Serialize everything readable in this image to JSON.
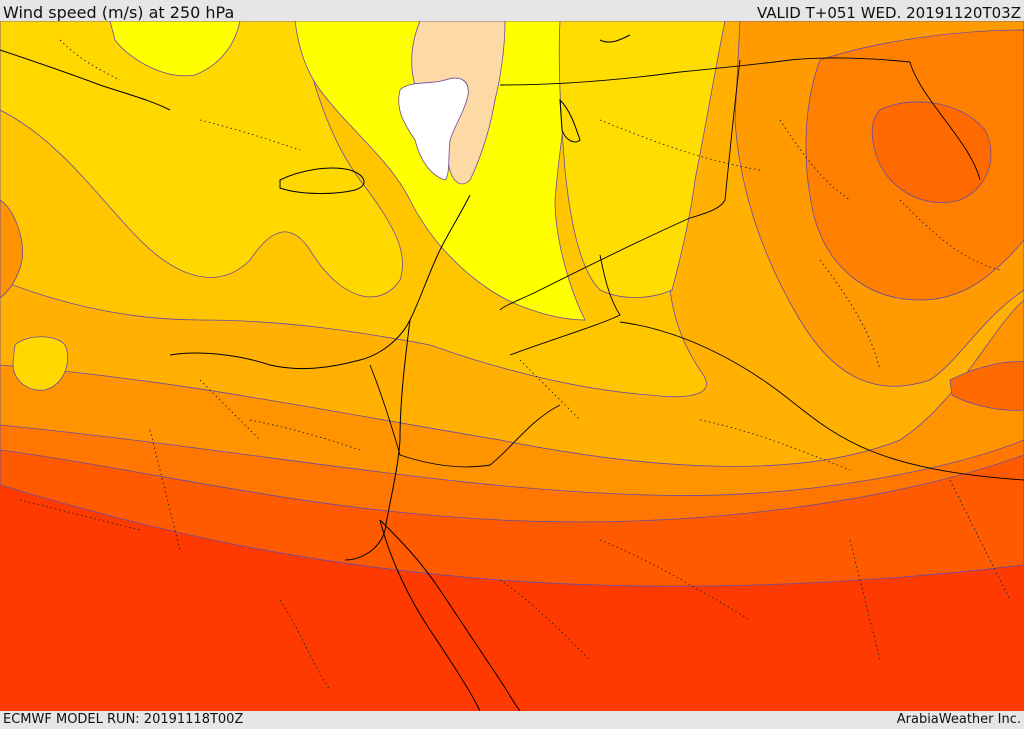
{
  "header": {
    "title": "Wind speed (m/s) at 250 hPa",
    "valid_time": "VALID T+051 WED. 20191120T03Z"
  },
  "footer": {
    "model_run": "ECMWF MODEL RUN: 20191118T00Z",
    "credit": "ArabiaWeather Inc."
  },
  "map": {
    "variable": "Wind speed",
    "units": "m/s",
    "pressure_level": "250 hPa",
    "color_scale": [
      "#ffffff",
      "#fdd9a5",
      "#ffff00",
      "#ffdd00",
      "#ffc100",
      "#ffa500",
      "#ff8c00",
      "#ff6a00",
      "#ff4a00",
      "#ff2a10"
    ]
  }
}
